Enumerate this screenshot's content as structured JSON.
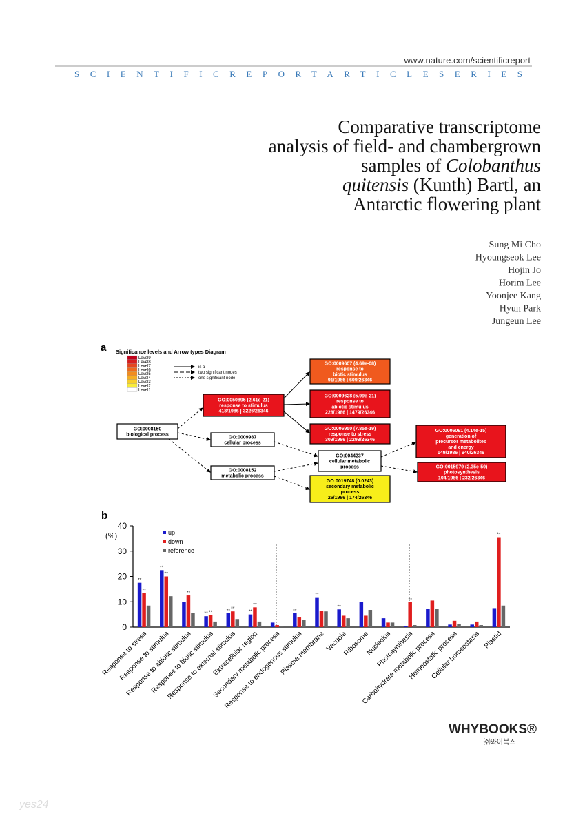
{
  "header": {
    "url": "www.nature.com/scientificreport",
    "series": "SCIENTIFICREPORTARTICLESERIES"
  },
  "title_lines": [
    [
      "Comparative transcriptome"
    ],
    [
      "analysis of field- and chambergrown"
    ],
    [
      "samples of ",
      "Colobanthus"
    ],
    [
      "quitensis",
      " (Kunth) Bartl, an"
    ],
    [
      "Antarctic flowering plant"
    ]
  ],
  "authors": [
    "Sung Mi Cho",
    "Hyoungseok Lee",
    "Hojin Jo",
    "Horim Lee",
    "Yoonjee Kang",
    "Hyun Park",
    "Jungeun Lee"
  ],
  "figure_a": {
    "label": "a",
    "legend_title": "Significance levels and Arrow types Diagram",
    "levels": [
      "Level9",
      "Level8",
      "Level7",
      "Level6",
      "Level5",
      "Level4",
      "Level3",
      "Level2",
      "Level1"
    ],
    "arrow_types": [
      "is a",
      "two significant nodes",
      "one significant node"
    ],
    "nodes": [
      [
        "GO:0008150",
        "biological process"
      ],
      [
        "GO:0050895 (2.61e-21)",
        "response to stimulus",
        "418/1986 | 3226/26346"
      ],
      [
        "GO:0009987",
        "cellular process"
      ],
      [
        "GO:0008152",
        "metabolic process"
      ],
      [
        "GO:0009607 (4.69e-08)",
        "response to",
        "biotic stimulus",
        "91/1986 | 609/26346"
      ],
      [
        "GO:0009628 (5.99e-21)",
        "response to",
        "abiotic stimulus",
        "228/1986 | 1479/26346"
      ],
      [
        "GO:0006950 (7.85e-19)",
        "response to stress",
        "309/1986 | 2293/26346"
      ],
      [
        "GO:0044237",
        "cellular metabolic",
        "process"
      ],
      [
        "GO:0019748 (0.0243)",
        "secondary metabolic",
        "process",
        "26/1986 | 174/26346"
      ],
      [
        "GO:0006091 (4.14e-15)",
        "generation of",
        "precursor metabolites",
        "and energy",
        "149/1986 | 940/26346"
      ],
      [
        "GO:0015979 (2.35e-50)",
        "photosynthesis",
        "104/1986 | 232/26346"
      ]
    ]
  },
  "figure_b_label": "b",
  "chart_data": {
    "type": "bar",
    "ylabel": "(%)",
    "ylim": [
      0,
      40
    ],
    "yticks": [
      0,
      10,
      20,
      30,
      40
    ],
    "legend": "top-left",
    "categories": [
      "Response to stress",
      "Response to stimulus",
      "Response to abiotic stimulus",
      "Response to biotic stimulus",
      "Response to external stimulus",
      "Extracellular region",
      "Secondary metabolic process",
      "Response to endogenous stimulus",
      "Plasma membrane",
      "Vacuole",
      "Ribosome",
      "Nucleolus",
      "Photosynthesis",
      "Carbohydrate metabolic process",
      "Homeostatic process",
      "Cellular homeostasis",
      "Plastid"
    ],
    "series": [
      {
        "name": "up",
        "color": "#1a1acc",
        "values": [
          17.5,
          22.5,
          10,
          4.3,
          5.5,
          5,
          1.8,
          5.5,
          11.8,
          7,
          9.8,
          3.5,
          0.5,
          7.2,
          1,
          1,
          7.5
        ]
      },
      {
        "name": "down",
        "color": "#e01e1e",
        "values": [
          13.5,
          20,
          12.5,
          4.8,
          6.2,
          7.8,
          0.8,
          3.8,
          6.5,
          4.5,
          4.5,
          1.8,
          9.8,
          10.5,
          2.5,
          2.2,
          35.5
        ]
      },
      {
        "name": "reference",
        "color": "#666666",
        "values": [
          8.5,
          12.2,
          5.5,
          2.2,
          3.2,
          2.2,
          0.5,
          2.8,
          6.2,
          3.5,
          6.8,
          1.8,
          0.8,
          7.2,
          1.2,
          0.8,
          8.5
        ]
      }
    ],
    "annotations": [
      {
        "category": "Response to stress",
        "series": "up",
        "text": "**"
      },
      {
        "category": "Response to stress",
        "series": "down",
        "text": "**"
      },
      {
        "category": "Response to stimulus",
        "series": "up",
        "text": "**"
      },
      {
        "category": "Response to stimulus",
        "series": "down",
        "text": "**"
      },
      {
        "category": "Response to abiotic stimulus",
        "series": "down",
        "text": "**"
      },
      {
        "category": "Response to biotic stimulus",
        "series": "up",
        "text": "**"
      },
      {
        "category": "Response to biotic stimulus",
        "series": "down",
        "text": "**"
      },
      {
        "category": "Response to external stimulus",
        "series": "up",
        "text": "**"
      },
      {
        "category": "Response to external stimulus",
        "series": "down",
        "text": "**"
      },
      {
        "category": "Extracellular region",
        "series": "up",
        "text": "**"
      },
      {
        "category": "Extracellular region",
        "series": "down",
        "text": "**"
      },
      {
        "category": "Response to endogenous stimulus",
        "series": "up",
        "text": "**"
      },
      {
        "category": "Plasma membrane",
        "series": "up",
        "text": "**"
      },
      {
        "category": "Vacuole",
        "series": "up",
        "text": "**"
      },
      {
        "category": "Photosynthesis",
        "series": "down",
        "text": "**"
      },
      {
        "category": "Plastid",
        "series": "down",
        "text": "**"
      }
    ]
  },
  "publisher": {
    "name": "WHYBOOKS®",
    "korean": "㈜와이북스"
  },
  "watermark": "yes24"
}
